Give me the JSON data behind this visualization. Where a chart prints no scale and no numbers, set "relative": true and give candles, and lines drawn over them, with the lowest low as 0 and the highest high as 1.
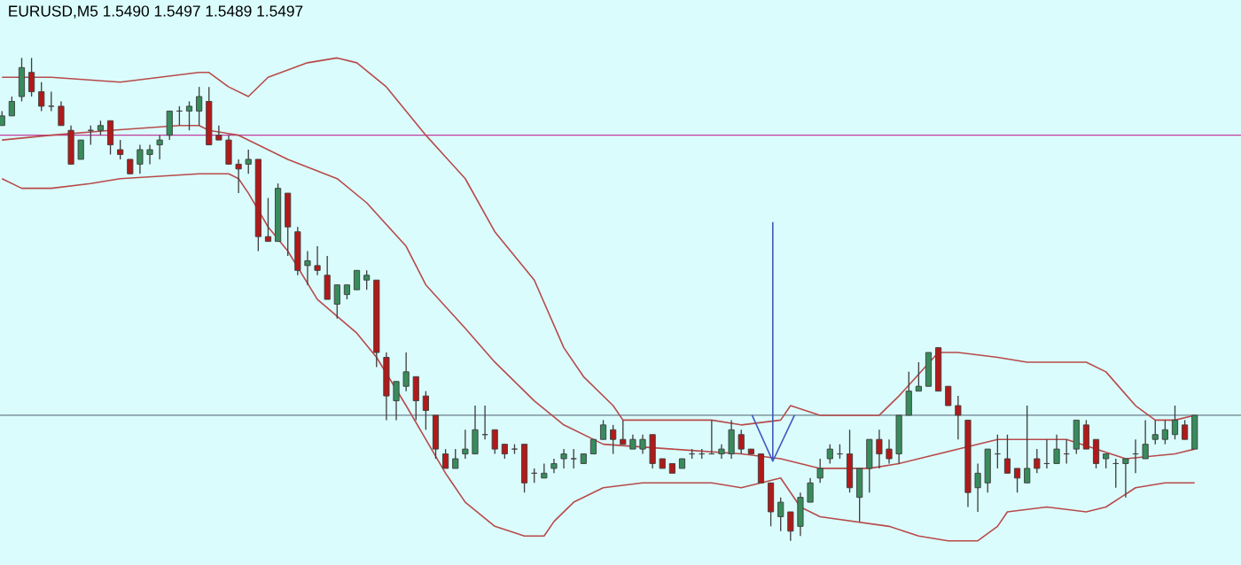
{
  "chart_data": {
    "type": "candlestick",
    "title": "EURUSD,M5  1.5490 1.5497 1.5489 1.5497",
    "relative": true,
    "categories": [
      null,
      null,
      null,
      null,
      null,
      null,
      null,
      null,
      null,
      null,
      null,
      null,
      null,
      null,
      null,
      null,
      null,
      null,
      null,
      null,
      null,
      null,
      null,
      null,
      null,
      null,
      null,
      null,
      null,
      null,
      null,
      null,
      null,
      null,
      null,
      null,
      null,
      null,
      null,
      null,
      null,
      null,
      null,
      null,
      null,
      null,
      null,
      null,
      null,
      null,
      null,
      null,
      null,
      null,
      null,
      null,
      null,
      null,
      null,
      null,
      null,
      null,
      null,
      null,
      null,
      null,
      null,
      null,
      null,
      null,
      null,
      null,
      null,
      null,
      null,
      null,
      null,
      null,
      null,
      null,
      null,
      null,
      null,
      null,
      null,
      null,
      null,
      null,
      null,
      null,
      null,
      null,
      null,
      null,
      null,
      null,
      null,
      null,
      null,
      null,
      null,
      null,
      null,
      null,
      null,
      null,
      null,
      null,
      null,
      null,
      null,
      null,
      null,
      null,
      null,
      null,
      null,
      null,
      null,
      null,
      null,
      null
    ],
    "ohlc": [
      [
        0.86,
        0.89,
        0.86,
        0.88
      ],
      [
        0.88,
        0.92,
        0.88,
        0.91
      ],
      [
        0.92,
        1.0,
        0.91,
        0.98
      ],
      [
        0.97,
        1.0,
        0.92,
        0.93
      ],
      [
        0.93,
        0.95,
        0.89,
        0.9
      ],
      [
        0.9,
        0.93,
        0.89,
        0.9
      ],
      [
        0.9,
        0.91,
        0.86,
        0.86
      ],
      [
        0.85,
        0.86,
        0.78,
        0.78
      ],
      [
        0.79,
        0.83,
        0.79,
        0.83
      ],
      [
        0.85,
        0.86,
        0.82,
        0.85
      ],
      [
        0.85,
        0.87,
        0.84,
        0.86
      ],
      [
        0.87,
        0.87,
        0.8,
        0.82
      ],
      [
        0.81,
        0.83,
        0.79,
        0.8
      ],
      [
        0.79,
        0.79,
        0.76,
        0.76
      ],
      [
        0.78,
        0.82,
        0.76,
        0.81
      ],
      [
        0.8,
        0.82,
        0.78,
        0.81
      ],
      [
        0.82,
        0.84,
        0.79,
        0.83
      ],
      [
        0.84,
        0.89,
        0.83,
        0.89
      ],
      [
        0.89,
        0.9,
        0.86,
        0.89
      ],
      [
        0.89,
        0.91,
        0.85,
        0.9
      ],
      [
        0.89,
        0.94,
        0.86,
        0.92
      ],
      [
        0.91,
        0.94,
        0.82,
        0.82
      ],
      [
        0.84,
        0.86,
        0.83,
        0.83
      ],
      [
        0.83,
        0.84,
        0.78,
        0.78
      ],
      [
        0.78,
        0.79,
        0.72,
        0.77
      ],
      [
        0.78,
        0.81,
        0.76,
        0.79
      ],
      [
        0.79,
        0.79,
        0.6,
        0.63
      ],
      [
        0.63,
        0.71,
        0.62,
        0.62
      ],
      [
        0.62,
        0.74,
        0.62,
        0.73
      ],
      [
        0.72,
        0.72,
        0.59,
        0.65
      ],
      [
        0.64,
        0.65,
        0.55,
        0.56
      ],
      [
        0.57,
        0.6,
        0.53,
        0.58
      ],
      [
        0.57,
        0.61,
        0.55,
        0.56
      ],
      [
        0.55,
        0.59,
        0.5,
        0.5
      ],
      [
        0.49,
        0.53,
        0.46,
        0.53
      ],
      [
        0.51,
        0.53,
        0.5,
        0.53
      ],
      [
        0.52,
        0.56,
        0.52,
        0.56
      ],
      [
        0.54,
        0.56,
        0.52,
        0.55
      ],
      [
        0.54,
        0.54,
        0.36,
        0.39
      ],
      [
        0.38,
        0.39,
        0.25,
        0.3
      ],
      [
        0.29,
        0.33,
        0.25,
        0.33
      ],
      [
        0.32,
        0.39,
        0.31,
        0.35
      ],
      [
        0.34,
        0.34,
        0.25,
        0.29
      ],
      [
        0.3,
        0.31,
        0.23,
        0.27
      ],
      [
        0.26,
        0.26,
        0.17,
        0.19
      ],
      [
        0.18,
        0.19,
        0.15,
        0.15
      ],
      [
        0.15,
        0.19,
        0.15,
        0.17
      ],
      [
        0.18,
        0.23,
        0.17,
        0.19
      ],
      [
        0.18,
        0.28,
        0.18,
        0.23
      ],
      [
        0.22,
        0.28,
        0.21,
        0.22
      ],
      [
        0.23,
        0.23,
        0.18,
        0.19
      ],
      [
        0.2,
        0.2,
        0.17,
        0.18
      ],
      [
        0.19,
        0.2,
        0.18,
        0.19
      ],
      [
        0.2,
        0.2,
        0.1,
        0.12
      ],
      [
        0.14,
        0.15,
        0.12,
        0.14
      ],
      [
        0.13,
        0.16,
        0.13,
        0.14
      ],
      [
        0.15,
        0.17,
        0.14,
        0.16
      ],
      [
        0.17,
        0.19,
        0.15,
        0.18
      ],
      [
        0.17,
        0.19,
        0.15,
        0.17
      ],
      [
        0.16,
        0.18,
        0.16,
        0.18
      ],
      [
        0.18,
        0.21,
        0.18,
        0.21
      ],
      [
        0.21,
        0.25,
        0.21,
        0.24
      ],
      [
        0.23,
        0.24,
        0.18,
        0.21
      ],
      [
        0.21,
        0.25,
        0.2,
        0.2
      ],
      [
        0.19,
        0.22,
        0.19,
        0.21
      ],
      [
        0.19,
        0.22,
        0.18,
        0.21
      ],
      [
        0.22,
        0.22,
        0.15,
        0.16
      ],
      [
        0.17,
        0.17,
        0.15,
        0.15
      ],
      [
        0.16,
        0.16,
        0.14,
        0.14
      ],
      [
        0.15,
        0.17,
        0.15,
        0.17
      ],
      [
        0.18,
        0.19,
        0.17,
        0.18
      ],
      [
        0.18,
        0.19,
        0.17,
        0.18
      ],
      [
        0.18,
        0.25,
        0.18,
        0.18
      ],
      [
        0.18,
        0.2,
        0.17,
        0.19
      ],
      [
        0.18,
        0.25,
        0.17,
        0.23
      ],
      [
        0.22,
        0.23,
        0.18,
        0.19
      ],
      [
        0.19,
        0.19,
        0.18,
        0.18
      ],
      [
        0.18,
        0.18,
        0.12,
        0.12
      ],
      [
        0.12,
        0.12,
        0.03,
        0.06
      ],
      [
        0.05,
        0.09,
        0.02,
        0.08
      ],
      [
        0.06,
        0.06,
        0.0,
        0.02
      ],
      [
        0.03,
        0.1,
        0.01,
        0.09
      ],
      [
        0.08,
        0.13,
        0.08,
        0.12
      ],
      [
        0.13,
        0.17,
        0.12,
        0.15
      ],
      [
        0.17,
        0.2,
        0.16,
        0.19
      ],
      [
        0.18,
        0.2,
        0.17,
        0.18
      ],
      [
        0.18,
        0.23,
        0.1,
        0.11
      ],
      [
        0.09,
        0.15,
        0.04,
        0.15
      ],
      [
        0.15,
        0.21,
        0.1,
        0.21
      ],
      [
        0.21,
        0.23,
        0.15,
        0.18
      ],
      [
        0.19,
        0.21,
        0.16,
        0.17
      ],
      [
        0.18,
        0.26,
        0.16,
        0.26
      ],
      [
        0.26,
        0.35,
        0.26,
        0.31
      ],
      [
        0.31,
        0.37,
        0.31,
        0.32
      ],
      [
        0.32,
        0.39,
        0.32,
        0.39
      ],
      [
        0.4,
        0.4,
        0.31,
        0.31
      ],
      [
        0.32,
        0.32,
        0.28,
        0.28
      ],
      [
        0.28,
        0.3,
        0.21,
        0.26
      ],
      [
        0.25,
        0.25,
        0.07,
        0.1
      ],
      [
        0.11,
        0.16,
        0.06,
        0.14
      ],
      [
        0.12,
        0.19,
        0.1,
        0.19
      ],
      [
        0.18,
        0.22,
        0.15,
        0.18
      ],
      [
        0.17,
        0.22,
        0.14,
        0.14
      ],
      [
        0.15,
        0.15,
        0.1,
        0.13
      ],
      [
        0.12,
        0.28,
        0.12,
        0.15
      ],
      [
        0.17,
        0.19,
        0.14,
        0.15
      ],
      [
        0.16,
        0.21,
        0.15,
        0.16
      ],
      [
        0.16,
        0.22,
        0.16,
        0.19
      ],
      [
        0.18,
        0.21,
        0.16,
        0.18
      ],
      [
        0.19,
        0.25,
        0.18,
        0.25
      ],
      [
        0.24,
        0.25,
        0.19,
        0.19
      ],
      [
        0.21,
        0.21,
        0.15,
        0.16
      ],
      [
        0.17,
        0.18,
        0.15,
        0.18
      ],
      [
        0.16,
        0.17,
        0.11,
        0.16
      ],
      [
        0.16,
        0.17,
        0.09,
        0.17
      ],
      [
        0.18,
        0.21,
        0.14,
        0.18
      ],
      [
        0.17,
        0.25,
        0.17,
        0.2
      ],
      [
        0.21,
        0.25,
        0.2,
        0.22
      ],
      [
        0.21,
        0.25,
        0.2,
        0.23
      ],
      [
        0.22,
        0.28,
        0.21,
        0.25
      ],
      [
        0.24,
        0.25,
        0.21,
        0.21
      ],
      [
        0.19,
        0.26,
        0.19,
        0.26
      ]
    ],
    "series": [
      {
        "type": "line",
        "color": "#b84a4a",
        "values": [
          0.96,
          null,
          null,
          null,
          null,
          0.96,
          null,
          null,
          null,
          null,
          null,
          null,
          0.95,
          null,
          null,
          null,
          null,
          null,
          null,
          null,
          0.97,
          0.97,
          null,
          0.94,
          null,
          0.92,
          null,
          0.96,
          null,
          null,
          null,
          0.99,
          null,
          null,
          1.0,
          null,
          0.99,
          null,
          null,
          0.94,
          null,
          null,
          null,
          0.84,
          null,
          null,
          null,
          0.75,
          null,
          null,
          0.64,
          null,
          null,
          null,
          0.54,
          null,
          null,
          0.4,
          null,
          0.34,
          null,
          null,
          0.28,
          0.25,
          null,
          null,
          null,
          null,
          null,
          null,
          null,
          null,
          0.25,
          null,
          null,
          0.24,
          null,
          null,
          null,
          0.25,
          0.28,
          null,
          null,
          0.26,
          null,
          null,
          0.26,
          null,
          null,
          0.26,
          null,
          0.3,
          null,
          null,
          null,
          0.39,
          null,
          0.39,
          null,
          null,
          null,
          0.38,
          null,
          null,
          0.37,
          null,
          null,
          null,
          null,
          null,
          0.37,
          null,
          0.35,
          null,
          null,
          0.28,
          null,
          0.25,
          null,
          0.25,
          null,
          0.26
        ]
      },
      {
        "type": "line",
        "color": "#b84a4a",
        "values": [
          0.83,
          null,
          null,
          null,
          null,
          0.84,
          null,
          null,
          null,
          null,
          null,
          0.85,
          null,
          null,
          null,
          null,
          null,
          null,
          0.86,
          null,
          0.86,
          0.85,
          null,
          null,
          0.84,
          null,
          null,
          null,
          null,
          0.79,
          null,
          null,
          null,
          null,
          0.75,
          null,
          null,
          0.7,
          null,
          null,
          null,
          0.61,
          null,
          0.53,
          null,
          null,
          null,
          0.44,
          null,
          null,
          0.37,
          null,
          null,
          null,
          0.29,
          null,
          null,
          0.24,
          null,
          null,
          null,
          0.2,
          null,
          null,
          null,
          null,
          null,
          null,
          0.19,
          null,
          null,
          null,
          null,
          null,
          null,
          0.18,
          null,
          null,
          null,
          0.17,
          null,
          null,
          null,
          0.15,
          null,
          null,
          null,
          null,
          0.15,
          null,
          null,
          0.16,
          null,
          0.17,
          null,
          null,
          null,
          0.19,
          null,
          null,
          null,
          0.21,
          null,
          null,
          null,
          null,
          null,
          null,
          0.21,
          null,
          null,
          0.19,
          null,
          null,
          0.17,
          null,
          null,
          null,
          null,
          0.18,
          null,
          0.19
        ]
      },
      {
        "type": "line",
        "color": "#b84a4a",
        "values": [
          0.75,
          null,
          0.73,
          null,
          null,
          0.73,
          null,
          null,
          null,
          0.74,
          null,
          null,
          0.75,
          null,
          null,
          null,
          null,
          null,
          null,
          null,
          0.76,
          null,
          null,
          0.76,
          0.75,
          0.72,
          null,
          0.65,
          null,
          0.6,
          null,
          null,
          0.5,
          null,
          null,
          null,
          0.43,
          null,
          0.38,
          null,
          null,
          0.28,
          null,
          0.21,
          null,
          0.14,
          null,
          0.08,
          null,
          null,
          0.03,
          null,
          null,
          0.01,
          null,
          0.01,
          0.04,
          null,
          0.08,
          null,
          null,
          0.11,
          null,
          null,
          null,
          0.12,
          null,
          null,
          null,
          null,
          null,
          null,
          0.12,
          null,
          null,
          0.11,
          null,
          null,
          null,
          0.13,
          null,
          0.07,
          null,
          0.05,
          null,
          null,
          null,
          null,
          null,
          null,
          0.03,
          null,
          null,
          0.01,
          null,
          null,
          0.0,
          null,
          null,
          0.0,
          null,
          0.03,
          0.06,
          null,
          null,
          null,
          0.07,
          null,
          null,
          null,
          0.06,
          null,
          0.07,
          null,
          null,
          0.11,
          null,
          null,
          0.12,
          null,
          null,
          0.12
        ]
      }
    ],
    "ref_lines": [
      {
        "axis": "y",
        "value": 0.84,
        "color": "#c03c9c"
      },
      {
        "axis": "y",
        "value": 0.26,
        "color": "#6a7f8c"
      }
    ]
  }
}
